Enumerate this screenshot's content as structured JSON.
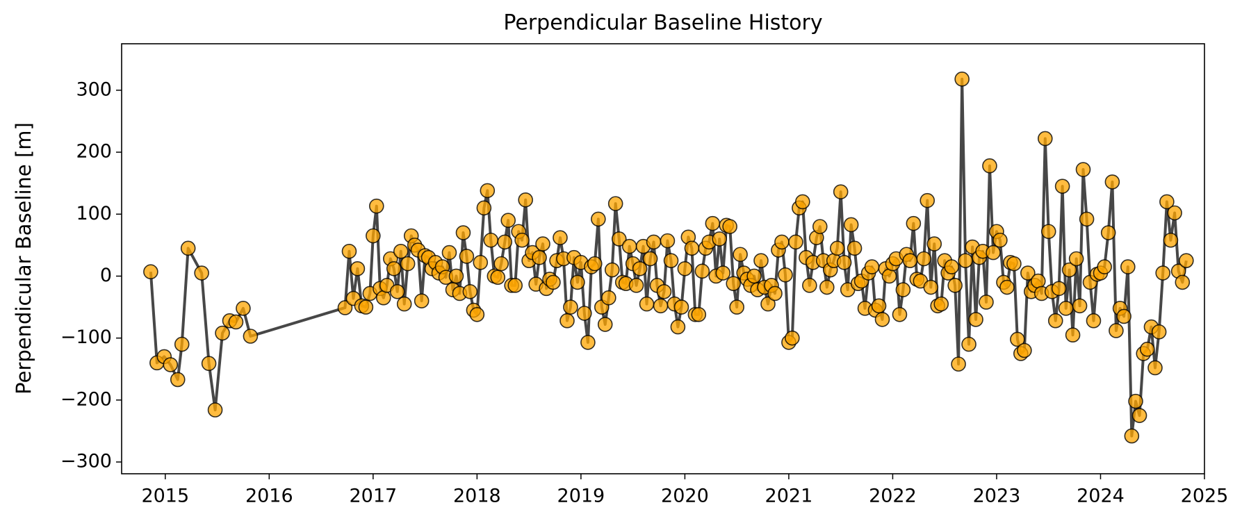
{
  "chart_data": {
    "type": "line",
    "title": "Perpendicular Baseline History",
    "y_label": "Perpendicular Baseline [m]",
    "marker_color": "#ffa500",
    "line_color": "#333333",
    "xlim": [
      2014.58,
      2025.0
    ],
    "xticks": [
      2015,
      2016,
      2017,
      2018,
      2019,
      2020,
      2021,
      2022,
      2023,
      2024,
      2025
    ],
    "ylim": [
      -319,
      375
    ],
    "yticks": [
      {
        "value": -300,
        "label": "−300"
      },
      {
        "value": -200,
        "label": "−200"
      },
      {
        "value": -100,
        "label": "−100"
      },
      0,
      100,
      200,
      300
    ],
    "x": [
      2014.86,
      2014.92,
      2014.99,
      2015.05,
      2015.12,
      2015.16,
      2015.22,
      2015.35,
      2015.42,
      2015.48,
      2015.55,
      2015.62,
      2015.68,
      2015.75,
      2015.82,
      2016.73,
      2016.77,
      2016.81,
      2016.85,
      2016.89,
      2016.93,
      2016.97,
      2017.0,
      2017.033,
      2017.067,
      2017.1,
      2017.133,
      2017.167,
      2017.2,
      2017.233,
      2017.267,
      2017.3,
      2017.333,
      2017.367,
      2017.4,
      2017.433,
      2017.467,
      2017.5,
      2017.533,
      2017.567,
      2017.6,
      2017.633,
      2017.667,
      2017.7,
      2017.733,
      2017.767,
      2017.8,
      2017.833,
      2017.867,
      2017.9,
      2017.933,
      2017.967,
      2018.0,
      2018.033,
      2018.067,
      2018.1,
      2018.133,
      2018.167,
      2018.2,
      2018.233,
      2018.267,
      2018.3,
      2018.333,
      2018.367,
      2018.4,
      2018.433,
      2018.467,
      2018.5,
      2018.533,
      2018.567,
      2018.6,
      2018.633,
      2018.667,
      2018.7,
      2018.733,
      2018.767,
      2018.8,
      2018.833,
      2018.867,
      2018.9,
      2018.933,
      2018.967,
      2019.0,
      2019.033,
      2019.067,
      2019.1,
      2019.133,
      2019.167,
      2019.2,
      2019.233,
      2019.267,
      2019.3,
      2019.333,
      2019.367,
      2019.4,
      2019.433,
      2019.467,
      2019.5,
      2019.533,
      2019.567,
      2019.6,
      2019.633,
      2019.667,
      2019.7,
      2019.733,
      2019.767,
      2019.8,
      2019.833,
      2019.867,
      2019.9,
      2019.933,
      2019.967,
      2020.0,
      2020.033,
      2020.067,
      2020.1,
      2020.133,
      2020.167,
      2020.2,
      2020.233,
      2020.267,
      2020.3,
      2020.333,
      2020.367,
      2020.4,
      2020.433,
      2020.467,
      2020.5,
      2020.533,
      2020.567,
      2020.6,
      2020.633,
      2020.667,
      2020.7,
      2020.733,
      2020.767,
      2020.8,
      2020.833,
      2020.867,
      2020.9,
      2020.933,
      2020.967,
      2021.0,
      2021.033,
      2021.067,
      2021.1,
      2021.133,
      2021.167,
      2021.2,
      2021.233,
      2021.267,
      2021.3,
      2021.333,
      2021.367,
      2021.4,
      2021.433,
      2021.467,
      2021.5,
      2021.533,
      2021.567,
      2021.6,
      2021.633,
      2021.667,
      2021.7,
      2021.733,
      2021.767,
      2021.8,
      2021.833,
      2021.867,
      2021.9,
      2021.933,
      2021.967,
      2022.0,
      2022.033,
      2022.067,
      2022.1,
      2022.133,
      2022.167,
      2022.2,
      2022.233,
      2022.267,
      2022.3,
      2022.333,
      2022.367,
      2022.4,
      2022.433,
      2022.467,
      2022.5,
      2022.533,
      2022.567,
      2022.6,
      2022.633,
      2022.667,
      2022.7,
      2022.733,
      2022.767,
      2022.8,
      2022.833,
      2022.867,
      2022.9,
      2022.933,
      2022.967,
      2023.0,
      2023.033,
      2023.067,
      2023.1,
      2023.133,
      2023.167,
      2023.2,
      2023.233,
      2023.267,
      2023.3,
      2023.333,
      2023.367,
      2023.4,
      2023.433,
      2023.467,
      2023.5,
      2023.533,
      2023.567,
      2023.6,
      2023.633,
      2023.667,
      2023.7,
      2023.733,
      2023.767,
      2023.8,
      2023.833,
      2023.867,
      2023.9,
      2023.933,
      2023.967,
      2024.0,
      2024.038,
      2024.075,
      2024.113,
      2024.15,
      2024.188,
      2024.225,
      2024.263,
      2024.3,
      2024.338,
      2024.375,
      2024.413,
      2024.45,
      2024.488,
      2024.525,
      2024.563,
      2024.6,
      2024.638,
      2024.675,
      2024.713,
      2024.75,
      2024.788,
      2024.825
    ],
    "values": [
      7,
      -140,
      -130,
      -143,
      -167,
      -110,
      45,
      5,
      -141,
      -216,
      -92,
      -72,
      -74,
      -52,
      -97,
      -51,
      40,
      -36,
      12,
      -48,
      -50,
      -28,
      65,
      113,
      -20,
      -35,
      -15,
      28,
      12,
      -25,
      40,
      -45,
      20,
      65,
      50,
      42,
      -40,
      33,
      30,
      12,
      22,
      5,
      15,
      -2,
      38,
      -22,
      0,
      -28,
      70,
      32,
      -25,
      -55,
      -62,
      22,
      110,
      138,
      58,
      0,
      -2,
      20,
      55,
      90,
      -15,
      -15,
      72,
      58,
      123,
      25,
      38,
      -13,
      30,
      52,
      -20,
      -5,
      -10,
      25,
      62,
      28,
      -72,
      -50,
      30,
      -10,
      22,
      -60,
      -107,
      15,
      20,
      92,
      -50,
      -78,
      -35,
      10,
      117,
      60,
      -10,
      -12,
      48,
      20,
      -15,
      12,
      48,
      -45,
      28,
      55,
      -15,
      -48,
      -25,
      57,
      25,
      -45,
      -82,
      -50,
      12,
      63,
      45,
      -62,
      -62,
      8,
      45,
      55,
      85,
      0,
      60,
      5,
      82,
      80,
      -12,
      -50,
      35,
      5,
      -5,
      -15,
      0,
      -22,
      25,
      -18,
      -45,
      -15,
      -28,
      42,
      55,
      2,
      -107,
      -100,
      55,
      110,
      120,
      30,
      -15,
      22,
      62,
      80,
      25,
      -18,
      10,
      25,
      45,
      136,
      22,
      -22,
      83,
      45,
      -12,
      -8,
      -52,
      5,
      15,
      -55,
      -48,
      -70,
      12,
      0,
      20,
      28,
      -62,
      -22,
      35,
      25,
      85,
      -5,
      -8,
      28,
      122,
      -18,
      52,
      -48,
      -45,
      25,
      5,
      15,
      -15,
      -142,
      318,
      25,
      -110,
      47,
      -70,
      30,
      40,
      -42,
      178,
      38,
      72,
      58,
      -10,
      -18,
      22,
      20,
      -102,
      -125,
      -120,
      5,
      -25,
      -15,
      -8,
      -28,
      222,
      72,
      -25,
      -72,
      -20,
      145,
      -52,
      10,
      -95,
      28,
      -48,
      172,
      92,
      -10,
      -72,
      3,
      5,
      15,
      70,
      152,
      -88,
      -52,
      -65,
      15,
      -258,
      -202,
      -225,
      -125,
      -118,
      -82,
      -148,
      -90,
      5,
      120,
      58,
      102,
      8,
      -10,
      25
    ]
  }
}
